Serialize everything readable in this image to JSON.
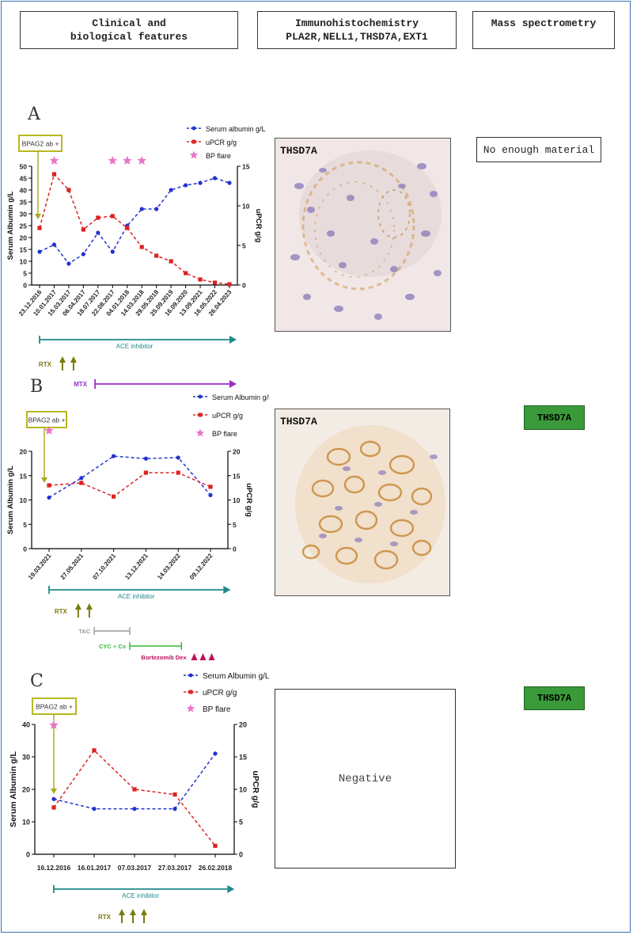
{
  "headers": {
    "clinical": "Clinical and biological features",
    "ihc_line1": "Immunohistochemistry",
    "ihc_line2": "PLA2R,NELL1,THSD7A,EXT1",
    "ms": "Mass spectrometry"
  },
  "colors": {
    "albumin": "#2233cc",
    "upcr": "#dd2222",
    "bp_flare": "#e875c8",
    "ace": "#1f8a8a",
    "rtx": "#7a7a10",
    "mtx": "#9a2ec8",
    "tac": "#999999",
    "cyc": "#33bb33",
    "bortezomib": "#c0105a",
    "ms_positive": "#3a9a3a"
  },
  "chart_data": [
    {
      "panel": "A",
      "type": "line",
      "categories": [
        "23.12.2016",
        "10.01.2017",
        "15.03.2017",
        "06.04.2017",
        "18.07.2017",
        "22.08.2017",
        "04.01.2018",
        "14.03.2018",
        "29.05.2018",
        "25.09.2019",
        "16.09.2020",
        "13.09.2021",
        "16.05.2022",
        "26.04.2023"
      ],
      "series": [
        {
          "name": "Serum albumin g/L",
          "axis": "left",
          "values": [
            14,
            17,
            9,
            13,
            22,
            14,
            25,
            32,
            32,
            40,
            42,
            43,
            45,
            43
          ]
        },
        {
          "name": "uPCR g/g",
          "axis": "right",
          "values": [
            7.2,
            14,
            12,
            7,
            8.5,
            8.7,
            7.2,
            4.8,
            3.7,
            3,
            1.5,
            0.7,
            0.3,
            0.1
          ]
        }
      ],
      "ylabel": "Serum Albumin g/L",
      "y2label": "uPCR g/g",
      "ylim": [
        0,
        50
      ],
      "yticks": [
        0,
        5,
        10,
        15,
        20,
        25,
        30,
        35,
        40,
        45,
        50
      ],
      "y2lim": [
        0,
        15
      ],
      "y2ticks": [
        0,
        5,
        10,
        15
      ],
      "legend": [
        "Serum albumin g/L",
        "uPCR g/g",
        "BP flare"
      ],
      "antibody_label": "BPAG2 ab +",
      "bp_flare_at": [
        1,
        5,
        6,
        7
      ],
      "treatments": [
        {
          "label": "ACE inhibitor",
          "kind": "arrow-line",
          "from": 0,
          "to": 13,
          "color": "ace"
        },
        {
          "label": "RTX",
          "kind": "arrows",
          "count": 2,
          "at": 2,
          "color": "rtx"
        },
        {
          "label": "MTX",
          "kind": "bar-arrow",
          "from": 3.8,
          "to": 13,
          "color": "mtx"
        }
      ]
    },
    {
      "panel": "B",
      "type": "line",
      "categories": [
        "19.03.2021",
        "27.05.2021",
        "07.10.2021",
        "13.12.2021",
        "14.03.2022",
        "09.12.2022"
      ],
      "series": [
        {
          "name": "Serum Albumin g/L",
          "axis": "left",
          "values": [
            10.5,
            14.5,
            19,
            18.5,
            18.7,
            11
          ]
        },
        {
          "name": "uPCR g/g",
          "axis": "right",
          "values": [
            13,
            13.5,
            10.7,
            15.6,
            15.6,
            12.7
          ]
        }
      ],
      "ylabel": "Serum Albumin g/L",
      "y2label": "uPCR g/g",
      "ylim": [
        0,
        20
      ],
      "yticks": [
        0,
        5,
        10,
        15,
        20
      ],
      "y2lim": [
        0,
        20
      ],
      "y2ticks": [
        0,
        5,
        10,
        15,
        20
      ],
      "legend": [
        "Serum Albumin g/L",
        "uPCR g/g",
        "BP flare"
      ],
      "antibody_label": "BPAG2 ab +",
      "bp_flare_at": [
        0
      ],
      "treatments": [
        {
          "label": "ACE inhibitor",
          "kind": "arrow-line",
          "from": 0,
          "to": 5.4,
          "color": "ace"
        },
        {
          "label": "RTX",
          "kind": "arrows",
          "count": 2,
          "at": 1.1,
          "color": "rtx"
        },
        {
          "label": "TAC",
          "kind": "bracket",
          "from": 1.4,
          "to": 2.5,
          "color": "tac"
        },
        {
          "label": "CYC + Cs",
          "kind": "bracket",
          "from": 2.5,
          "to": 4.1,
          "color": "cyc"
        },
        {
          "label": "Bortezomib Dex",
          "kind": "triangles",
          "count": 3,
          "at": 4.4,
          "color": "bortezomib"
        }
      ]
    },
    {
      "panel": "C",
      "type": "line",
      "categories": [
        "16.12.2016",
        "16.01.2017",
        "07.03.2017",
        "27.03.2017",
        "26.02.2018"
      ],
      "series": [
        {
          "name": "Serum Albumin g/L",
          "axis": "left",
          "values": [
            17,
            14,
            14,
            14,
            31
          ]
        },
        {
          "name": "uPCR g/g",
          "axis": "right",
          "values": [
            7.2,
            16,
            10,
            9.2,
            1.3
          ]
        }
      ],
      "ylabel": "Serum Albumin g/L",
      "y2label": "uPCR g/g",
      "ylim": [
        0,
        40
      ],
      "yticks": [
        0,
        10,
        20,
        30,
        40
      ],
      "y2lim": [
        0,
        20
      ],
      "y2ticks": [
        0,
        5,
        10,
        15,
        20
      ],
      "legend": [
        "Serum Albumin g/L",
        "uPCR g/g",
        "BP flare"
      ],
      "antibody_label": "BPAG2 ab +",
      "bp_flare_at": [
        0
      ],
      "treatments": [
        {
          "label": "ACE inhibitor",
          "kind": "arrow-line",
          "from": 0,
          "to": 4.3,
          "color": "ace"
        },
        {
          "label": "RTX",
          "kind": "arrows",
          "count": 3,
          "at": 2,
          "color": "rtx"
        }
      ]
    }
  ],
  "ihc": {
    "a_label": "THSD7A",
    "b_label": "THSD7A",
    "c_text": "Negative"
  },
  "ms": {
    "a_text": "No enough material",
    "b_text": "THSD7A",
    "c_text": "THSD7A"
  },
  "panels": {
    "a": "A",
    "b": "B",
    "c": "C"
  }
}
